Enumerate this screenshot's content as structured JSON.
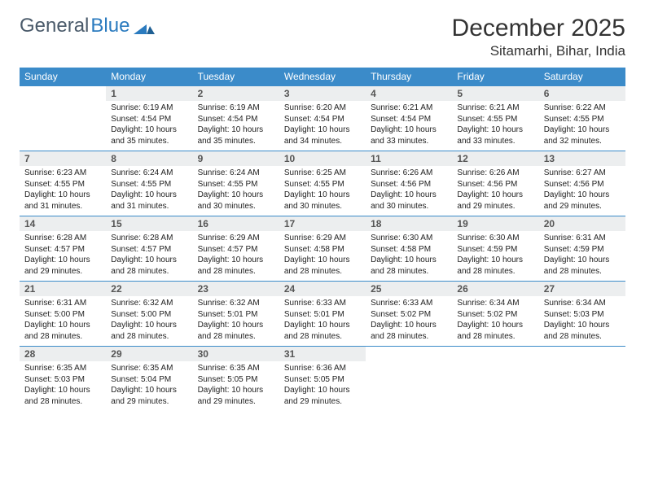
{
  "brand": {
    "part1": "General",
    "part2": "Blue"
  },
  "title": "December 2025",
  "location": "Sitamarhi, Bihar, India",
  "colors": {
    "header_bg": "#3b8bc9",
    "header_text": "#ffffff",
    "daynum_bg": "#eceeef",
    "border": "#3b8bc9",
    "logo_gray": "#4a5a6a",
    "logo_blue": "#2b7bbf"
  },
  "weekdays": [
    "Sunday",
    "Monday",
    "Tuesday",
    "Wednesday",
    "Thursday",
    "Friday",
    "Saturday"
  ],
  "start_weekday": 1,
  "days": [
    {
      "n": 1,
      "sr": "6:19 AM",
      "ss": "4:54 PM",
      "dl": "10 hours and 35 minutes."
    },
    {
      "n": 2,
      "sr": "6:19 AM",
      "ss": "4:54 PM",
      "dl": "10 hours and 35 minutes."
    },
    {
      "n": 3,
      "sr": "6:20 AM",
      "ss": "4:54 PM",
      "dl": "10 hours and 34 minutes."
    },
    {
      "n": 4,
      "sr": "6:21 AM",
      "ss": "4:54 PM",
      "dl": "10 hours and 33 minutes."
    },
    {
      "n": 5,
      "sr": "6:21 AM",
      "ss": "4:55 PM",
      "dl": "10 hours and 33 minutes."
    },
    {
      "n": 6,
      "sr": "6:22 AM",
      "ss": "4:55 PM",
      "dl": "10 hours and 32 minutes."
    },
    {
      "n": 7,
      "sr": "6:23 AM",
      "ss": "4:55 PM",
      "dl": "10 hours and 31 minutes."
    },
    {
      "n": 8,
      "sr": "6:24 AM",
      "ss": "4:55 PM",
      "dl": "10 hours and 31 minutes."
    },
    {
      "n": 9,
      "sr": "6:24 AM",
      "ss": "4:55 PM",
      "dl": "10 hours and 30 minutes."
    },
    {
      "n": 10,
      "sr": "6:25 AM",
      "ss": "4:55 PM",
      "dl": "10 hours and 30 minutes."
    },
    {
      "n": 11,
      "sr": "6:26 AM",
      "ss": "4:56 PM",
      "dl": "10 hours and 30 minutes."
    },
    {
      "n": 12,
      "sr": "6:26 AM",
      "ss": "4:56 PM",
      "dl": "10 hours and 29 minutes."
    },
    {
      "n": 13,
      "sr": "6:27 AM",
      "ss": "4:56 PM",
      "dl": "10 hours and 29 minutes."
    },
    {
      "n": 14,
      "sr": "6:28 AM",
      "ss": "4:57 PM",
      "dl": "10 hours and 29 minutes."
    },
    {
      "n": 15,
      "sr": "6:28 AM",
      "ss": "4:57 PM",
      "dl": "10 hours and 28 minutes."
    },
    {
      "n": 16,
      "sr": "6:29 AM",
      "ss": "4:57 PM",
      "dl": "10 hours and 28 minutes."
    },
    {
      "n": 17,
      "sr": "6:29 AM",
      "ss": "4:58 PM",
      "dl": "10 hours and 28 minutes."
    },
    {
      "n": 18,
      "sr": "6:30 AM",
      "ss": "4:58 PM",
      "dl": "10 hours and 28 minutes."
    },
    {
      "n": 19,
      "sr": "6:30 AM",
      "ss": "4:59 PM",
      "dl": "10 hours and 28 minutes."
    },
    {
      "n": 20,
      "sr": "6:31 AM",
      "ss": "4:59 PM",
      "dl": "10 hours and 28 minutes."
    },
    {
      "n": 21,
      "sr": "6:31 AM",
      "ss": "5:00 PM",
      "dl": "10 hours and 28 minutes."
    },
    {
      "n": 22,
      "sr": "6:32 AM",
      "ss": "5:00 PM",
      "dl": "10 hours and 28 minutes."
    },
    {
      "n": 23,
      "sr": "6:32 AM",
      "ss": "5:01 PM",
      "dl": "10 hours and 28 minutes."
    },
    {
      "n": 24,
      "sr": "6:33 AM",
      "ss": "5:01 PM",
      "dl": "10 hours and 28 minutes."
    },
    {
      "n": 25,
      "sr": "6:33 AM",
      "ss": "5:02 PM",
      "dl": "10 hours and 28 minutes."
    },
    {
      "n": 26,
      "sr": "6:34 AM",
      "ss": "5:02 PM",
      "dl": "10 hours and 28 minutes."
    },
    {
      "n": 27,
      "sr": "6:34 AM",
      "ss": "5:03 PM",
      "dl": "10 hours and 28 minutes."
    },
    {
      "n": 28,
      "sr": "6:35 AM",
      "ss": "5:03 PM",
      "dl": "10 hours and 28 minutes."
    },
    {
      "n": 29,
      "sr": "6:35 AM",
      "ss": "5:04 PM",
      "dl": "10 hours and 29 minutes."
    },
    {
      "n": 30,
      "sr": "6:35 AM",
      "ss": "5:05 PM",
      "dl": "10 hours and 29 minutes."
    },
    {
      "n": 31,
      "sr": "6:36 AM",
      "ss": "5:05 PM",
      "dl": "10 hours and 29 minutes."
    }
  ],
  "labels": {
    "sunrise": "Sunrise:",
    "sunset": "Sunset:",
    "daylight": "Daylight:"
  }
}
